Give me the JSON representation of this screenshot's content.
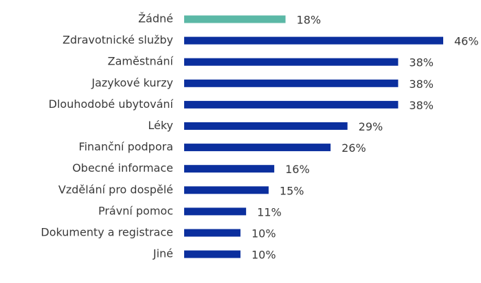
{
  "chart_data": {
    "type": "hbar",
    "categories": [
      "Žádné",
      "Zdravotnické služby",
      "Zaměstnání",
      "Jazykové kurzy",
      "Dlouhodobé ubytování",
      "Léky",
      "Finanční podpora",
      "Obecné informace",
      "Vzdělání pro dospělé",
      "Právní pomoc",
      "Dokumenty a registrace",
      "Jiné"
    ],
    "values": [
      18,
      46,
      38,
      38,
      38,
      29,
      26,
      16,
      15,
      11,
      10,
      10
    ],
    "value_labels": [
      "18%",
      "46%",
      "38%",
      "38%",
      "38%",
      "29%",
      "26%",
      "16%",
      "15%",
      "11%",
      "10%",
      "10%"
    ],
    "colors": [
      "#5bb8a6",
      "#0b2f9e",
      "#0b2f9e",
      "#0b2f9e",
      "#0b2f9e",
      "#0b2f9e",
      "#0b2f9e",
      "#0b2f9e",
      "#0b2f9e",
      "#0b2f9e",
      "#0b2f9e",
      "#0b2f9e"
    ]
  }
}
